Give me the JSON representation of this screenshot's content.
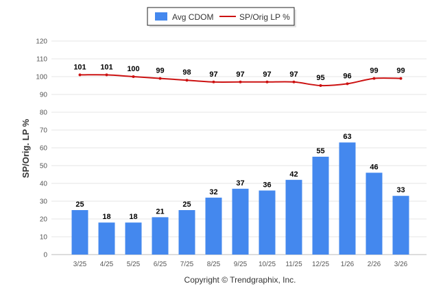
{
  "chart_data": {
    "type": "bar",
    "categories": [
      "3/25",
      "4/25",
      "5/25",
      "6/25",
      "7/25",
      "8/25",
      "9/25",
      "10/25",
      "11/25",
      "12/25",
      "1/26",
      "2/26",
      "3/26"
    ],
    "series": [
      {
        "name": "Avg CDOM",
        "type": "bar",
        "color": "#4488ee",
        "values": [
          25,
          18,
          18,
          21,
          25,
          32,
          37,
          36,
          42,
          55,
          63,
          46,
          33
        ]
      },
      {
        "name": "SP/Orig LP %",
        "type": "line",
        "color": "#cc1111",
        "values": [
          101,
          101,
          100,
          99,
          98,
          97,
          97,
          97,
          97,
          95,
          96,
          99,
          99
        ]
      }
    ],
    "ylabel": "SP/Orig. LP %",
    "ylim": [
      0,
      120
    ],
    "yticks": [
      0,
      10,
      20,
      30,
      40,
      50,
      60,
      70,
      80,
      90,
      100,
      110,
      120
    ],
    "grid": true,
    "legend_position": "top-center"
  },
  "footer": {
    "copyright": "Copyright © Trendgraphix, Inc."
  }
}
